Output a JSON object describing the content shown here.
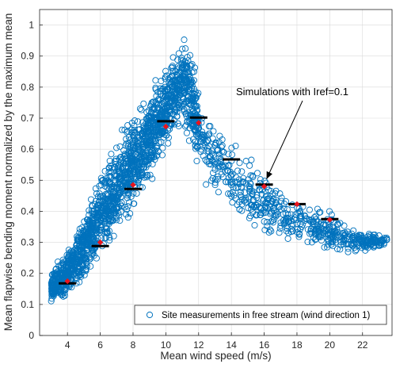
{
  "chart_data": {
    "type": "scatter",
    "title": "",
    "xlabel": "Mean wind speed (m/s)",
    "ylabel": "Mean flapwise bending moment normalized by the maximum mean",
    "xlim": [
      2.3,
      23.8
    ],
    "ylim": [
      0,
      1.05
    ],
    "xticks": [
      4,
      6,
      8,
      10,
      12,
      14,
      16,
      18,
      20,
      22
    ],
    "yticks": [
      0,
      0.1,
      0.2,
      0.3,
      0.4,
      0.5,
      0.6,
      0.7,
      0.8,
      0.9,
      1
    ],
    "grid": true,
    "legend_position": "bottom-right",
    "colors": {
      "measurements": "#0072BD",
      "simulation_mean": "#000000",
      "simulation_point": "#E8141E"
    },
    "series": [
      {
        "name": "Site measurements in free stream (wind direction 1)",
        "kind": "scatter",
        "marker": "open-circle",
        "envelope": {
          "x": [
            3,
            4,
            5,
            6,
            7,
            8,
            9,
            10,
            10.5,
            11,
            11.5,
            12,
            13,
            14,
            15,
            16,
            17,
            18,
            19,
            20,
            21,
            22,
            23.5
          ],
          "y_low": [
            0.09,
            0.11,
            0.16,
            0.22,
            0.3,
            0.38,
            0.47,
            0.57,
            0.62,
            0.66,
            0.6,
            0.5,
            0.42,
            0.37,
            0.33,
            0.31,
            0.29,
            0.27,
            0.26,
            0.25,
            0.25,
            0.26,
            0.29
          ],
          "y_high": [
            0.22,
            0.28,
            0.4,
            0.55,
            0.65,
            0.73,
            0.81,
            0.89,
            0.93,
            0.99,
            0.96,
            0.84,
            0.73,
            0.66,
            0.6,
            0.55,
            0.5,
            0.46,
            0.44,
            0.42,
            0.38,
            0.34,
            0.32
          ]
        }
      },
      {
        "name": "Simulations with Iref=0.1",
        "kind": "mean-bar",
        "x": [
          4,
          6,
          8,
          10,
          12,
          14,
          16,
          18,
          20
        ],
        "y": [
          0.168,
          0.288,
          0.472,
          0.69,
          0.702,
          0.567,
          0.486,
          0.423,
          0.375
        ]
      },
      {
        "name": "",
        "kind": "points",
        "x": [
          4,
          6,
          8,
          10,
          12,
          16,
          18,
          20
        ],
        "y": [
          0.175,
          0.3,
          0.485,
          0.673,
          0.685,
          0.48,
          0.423,
          0.373
        ]
      }
    ],
    "annotation": {
      "text": "Simulations with Iref=0.1",
      "points_to": [
        16,
        0.486
      ]
    },
    "legend": {
      "label": "Site measurements in free stream (wind direction 1)"
    }
  }
}
